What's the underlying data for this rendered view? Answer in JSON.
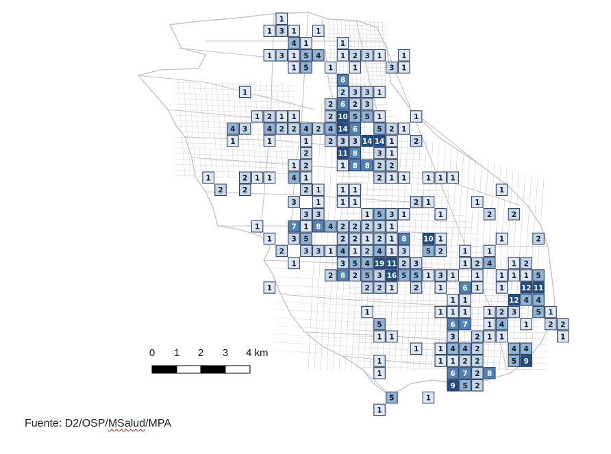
{
  "colors": {
    "street": "#c4c4c4",
    "cell_border": "#33415a",
    "cell_scale": [
      "#dce8f5",
      "#c2d7ec",
      "#8eb3d8",
      "#4f82b8",
      "#1f4e86"
    ],
    "text_dark": "#1a1a1a",
    "text_light": "#ffffff"
  },
  "scalebar": {
    "ticks": [
      "0",
      "1",
      "2",
      "3",
      "4 km"
    ]
  },
  "source": {
    "prefix": "Fuente: D2/OSP/",
    "underlined": "MSalud",
    "suffix": "/MPA"
  },
  "cells": [
    {
      "r": 0,
      "c": 0,
      "v": 1
    },
    {
      "r": 1,
      "c": -1,
      "v": 1
    },
    {
      "r": 1,
      "c": 0,
      "v": 3
    },
    {
      "r": 1,
      "c": 1,
      "v": 1
    },
    {
      "r": 1,
      "c": 3,
      "v": 1
    },
    {
      "r": 2,
      "c": 1,
      "v": 4
    },
    {
      "r": 2,
      "c": 2,
      "v": 1
    },
    {
      "r": 2,
      "c": 5,
      "v": 1
    },
    {
      "r": 3,
      "c": -1,
      "v": 1
    },
    {
      "r": 3,
      "c": 0,
      "v": 3
    },
    {
      "r": 3,
      "c": 1,
      "v": 1
    },
    {
      "r": 3,
      "c": 2,
      "v": 5
    },
    {
      "r": 3,
      "c": 3,
      "v": 4
    },
    {
      "r": 3,
      "c": 5,
      "v": 1
    },
    {
      "r": 3,
      "c": 6,
      "v": 2
    },
    {
      "r": 3,
      "c": 7,
      "v": 3
    },
    {
      "r": 3,
      "c": 8,
      "v": 1
    },
    {
      "r": 3,
      "c": 10,
      "v": 1
    },
    {
      "r": 4,
      "c": 1,
      "v": 1
    },
    {
      "r": 4,
      "c": 2,
      "v": 5
    },
    {
      "r": 4,
      "c": 4,
      "v": 1
    },
    {
      "r": 4,
      "c": 6,
      "v": 1
    },
    {
      "r": 4,
      "c": 9,
      "v": 3
    },
    {
      "r": 4,
      "c": 10,
      "v": 1
    },
    {
      "r": 5,
      "c": 5,
      "v": 8
    },
    {
      "r": 6,
      "c": -3,
      "v": 1
    },
    {
      "r": 6,
      "c": 5,
      "v": 2
    },
    {
      "r": 6,
      "c": 6,
      "v": 3
    },
    {
      "r": 6,
      "c": 7,
      "v": 3
    },
    {
      "r": 6,
      "c": 8,
      "v": 1
    },
    {
      "r": 7,
      "c": 4,
      "v": 2
    },
    {
      "r": 7,
      "c": 5,
      "v": 6
    },
    {
      "r": 7,
      "c": 6,
      "v": 2
    },
    {
      "r": 7,
      "c": 7,
      "v": 3
    },
    {
      "r": 8,
      "c": -2,
      "v": 1
    },
    {
      "r": 8,
      "c": -1,
      "v": 2
    },
    {
      "r": 8,
      "c": 0,
      "v": 1
    },
    {
      "r": 8,
      "c": 1,
      "v": 1
    },
    {
      "r": 8,
      "c": 4,
      "v": 2
    },
    {
      "r": 8,
      "c": 5,
      "v": 10
    },
    {
      "r": 8,
      "c": 6,
      "v": 5
    },
    {
      "r": 8,
      "c": 7,
      "v": 5
    },
    {
      "r": 8,
      "c": 8,
      "v": 1
    },
    {
      "r": 8,
      "c": 11,
      "v": 1
    },
    {
      "r": 9,
      "c": -4,
      "v": 4
    },
    {
      "r": 9,
      "c": -3,
      "v": 3
    },
    {
      "r": 9,
      "c": -1,
      "v": 4
    },
    {
      "r": 9,
      "c": 0,
      "v": 2
    },
    {
      "r": 9,
      "c": 1,
      "v": 2
    },
    {
      "r": 9,
      "c": 2,
      "v": 4
    },
    {
      "r": 9,
      "c": 3,
      "v": 2
    },
    {
      "r": 9,
      "c": 4,
      "v": 4
    },
    {
      "r": 9,
      "c": 5,
      "v": 14
    },
    {
      "r": 9,
      "c": 6,
      "v": 6
    },
    {
      "r": 9,
      "c": 8,
      "v": 5
    },
    {
      "r": 9,
      "c": 9,
      "v": 2
    },
    {
      "r": 9,
      "c": 10,
      "v": 1
    },
    {
      "r": 10,
      "c": -4,
      "v": 1
    },
    {
      "r": 10,
      "c": -1,
      "v": 1
    },
    {
      "r": 10,
      "c": 2,
      "v": 1
    },
    {
      "r": 10,
      "c": 4,
      "v": 2
    },
    {
      "r": 10,
      "c": 5,
      "v": 3
    },
    {
      "r": 10,
      "c": 6,
      "v": 3
    },
    {
      "r": 10,
      "c": 7,
      "v": 14
    },
    {
      "r": 10,
      "c": 8,
      "v": 14
    },
    {
      "r": 10,
      "c": 9,
      "v": 1
    },
    {
      "r": 10,
      "c": 11,
      "v": 2
    },
    {
      "r": 11,
      "c": 2,
      "v": 2
    },
    {
      "r": 11,
      "c": 5,
      "v": 11
    },
    {
      "r": 11,
      "c": 6,
      "v": 8
    },
    {
      "r": 11,
      "c": 8,
      "v": 3
    },
    {
      "r": 11,
      "c": 9,
      "v": 1
    },
    {
      "r": 12,
      "c": 1,
      "v": 1
    },
    {
      "r": 12,
      "c": 2,
      "v": 2
    },
    {
      "r": 12,
      "c": 5,
      "v": 1
    },
    {
      "r": 12,
      "c": 6,
      "v": 8
    },
    {
      "r": 12,
      "c": 7,
      "v": 8
    },
    {
      "r": 12,
      "c": 8,
      "v": 2
    },
    {
      "r": 12,
      "c": 9,
      "v": 2
    },
    {
      "r": 13,
      "c": -6,
      "v": 1
    },
    {
      "r": 13,
      "c": -3,
      "v": 2
    },
    {
      "r": 13,
      "c": -2,
      "v": 1
    },
    {
      "r": 13,
      "c": -1,
      "v": 1
    },
    {
      "r": 13,
      "c": 1,
      "v": 4
    },
    {
      "r": 13,
      "c": 2,
      "v": 1
    },
    {
      "r": 13,
      "c": 8,
      "v": 2
    },
    {
      "r": 13,
      "c": 9,
      "v": 1
    },
    {
      "r": 13,
      "c": 10,
      "v": 1
    },
    {
      "r": 13,
      "c": 12,
      "v": 1
    },
    {
      "r": 13,
      "c": 13,
      "v": 1
    },
    {
      "r": 13,
      "c": 14,
      "v": 1
    },
    {
      "r": 14,
      "c": -5,
      "v": 2
    },
    {
      "r": 14,
      "c": -3,
      "v": 2
    },
    {
      "r": 14,
      "c": 2,
      "v": 2
    },
    {
      "r": 14,
      "c": 3,
      "v": 1
    },
    {
      "r": 14,
      "c": 5,
      "v": 1
    },
    {
      "r": 14,
      "c": 6,
      "v": 1
    },
    {
      "r": 14,
      "c": 18,
      "v": 1
    },
    {
      "r": 15,
      "c": 1,
      "v": 3
    },
    {
      "r": 15,
      "c": 3,
      "v": 1
    },
    {
      "r": 15,
      "c": 5,
      "v": 1
    },
    {
      "r": 15,
      "c": 6,
      "v": 1
    },
    {
      "r": 15,
      "c": 11,
      "v": 2
    },
    {
      "r": 15,
      "c": 12,
      "v": 1
    },
    {
      "r": 15,
      "c": 16,
      "v": 1
    },
    {
      "r": 16,
      "c": 2,
      "v": 3
    },
    {
      "r": 16,
      "c": 3,
      "v": 3
    },
    {
      "r": 16,
      "c": 7,
      "v": 1
    },
    {
      "r": 16,
      "c": 8,
      "v": 5
    },
    {
      "r": 16,
      "c": 9,
      "v": 3
    },
    {
      "r": 16,
      "c": 10,
      "v": 1
    },
    {
      "r": 16,
      "c": 13,
      "v": 1
    },
    {
      "r": 16,
      "c": 17,
      "v": 2
    },
    {
      "r": 16,
      "c": 19,
      "v": 2
    },
    {
      "r": 17,
      "c": -2,
      "v": 1
    },
    {
      "r": 17,
      "c": 1,
      "v": 7
    },
    {
      "r": 17,
      "c": 2,
      "v": 1
    },
    {
      "r": 17,
      "c": 3,
      "v": 8
    },
    {
      "r": 17,
      "c": 4,
      "v": 4
    },
    {
      "r": 17,
      "c": 5,
      "v": 2
    },
    {
      "r": 17,
      "c": 6,
      "v": 2
    },
    {
      "r": 17,
      "c": 7,
      "v": 2
    },
    {
      "r": 17,
      "c": 8,
      "v": 3
    },
    {
      "r": 17,
      "c": 9,
      "v": 1
    },
    {
      "r": 18,
      "c": -1,
      "v": 1
    },
    {
      "r": 18,
      "c": 1,
      "v": 3
    },
    {
      "r": 18,
      "c": 2,
      "v": 5
    },
    {
      "r": 18,
      "c": 5,
      "v": 2
    },
    {
      "r": 18,
      "c": 6,
      "v": 2
    },
    {
      "r": 18,
      "c": 7,
      "v": 1
    },
    {
      "r": 18,
      "c": 8,
      "v": 2
    },
    {
      "r": 18,
      "c": 9,
      "v": 1
    },
    {
      "r": 18,
      "c": 10,
      "v": 8
    },
    {
      "r": 18,
      "c": 12,
      "v": 10
    },
    {
      "r": 18,
      "c": 13,
      "v": 1
    },
    {
      "r": 18,
      "c": 18,
      "v": 1
    },
    {
      "r": 18,
      "c": 21,
      "v": 2
    },
    {
      "r": 19,
      "c": 0,
      "v": 2
    },
    {
      "r": 19,
      "c": 2,
      "v": 3
    },
    {
      "r": 19,
      "c": 3,
      "v": 3
    },
    {
      "r": 19,
      "c": 4,
      "v": 1
    },
    {
      "r": 19,
      "c": 5,
      "v": 4
    },
    {
      "r": 19,
      "c": 6,
      "v": 1
    },
    {
      "r": 19,
      "c": 7,
      "v": 2
    },
    {
      "r": 19,
      "c": 8,
      "v": 4
    },
    {
      "r": 19,
      "c": 9,
      "v": 1
    },
    {
      "r": 19,
      "c": 10,
      "v": 3
    },
    {
      "r": 19,
      "c": 12,
      "v": 5
    },
    {
      "r": 19,
      "c": 13,
      "v": 2
    },
    {
      "r": 19,
      "c": 15,
      "v": 1
    },
    {
      "r": 19,
      "c": 17,
      "v": 1
    },
    {
      "r": 20,
      "c": 1,
      "v": 1
    },
    {
      "r": 20,
      "c": 5,
      "v": 3
    },
    {
      "r": 20,
      "c": 6,
      "v": 5
    },
    {
      "r": 20,
      "c": 7,
      "v": 4
    },
    {
      "r": 20,
      "c": 8,
      "v": 19
    },
    {
      "r": 20,
      "c": 9,
      "v": 11
    },
    {
      "r": 20,
      "c": 10,
      "v": 2
    },
    {
      "r": 20,
      "c": 11,
      "v": 3
    },
    {
      "r": 20,
      "c": 15,
      "v": 1
    },
    {
      "r": 20,
      "c": 16,
      "v": 2
    },
    {
      "r": 20,
      "c": 17,
      "v": 4
    },
    {
      "r": 20,
      "c": 19,
      "v": 1
    },
    {
      "r": 20,
      "c": 20,
      "v": 2
    },
    {
      "r": 21,
      "c": 4,
      "v": 2
    },
    {
      "r": 21,
      "c": 5,
      "v": 8
    },
    {
      "r": 21,
      "c": 6,
      "v": 2
    },
    {
      "r": 21,
      "c": 7,
      "v": 5
    },
    {
      "r": 21,
      "c": 8,
      "v": 3
    },
    {
      "r": 21,
      "c": 9,
      "v": 16
    },
    {
      "r": 21,
      "c": 10,
      "v": 5
    },
    {
      "r": 21,
      "c": 11,
      "v": 5
    },
    {
      "r": 21,
      "c": 12,
      "v": 1
    },
    {
      "r": 21,
      "c": 13,
      "v": 3
    },
    {
      "r": 21,
      "c": 14,
      "v": 1
    },
    {
      "r": 21,
      "c": 16,
      "v": 1
    },
    {
      "r": 21,
      "c": 18,
      "v": 1
    },
    {
      "r": 21,
      "c": 19,
      "v": 1
    },
    {
      "r": 21,
      "c": 20,
      "v": 1
    },
    {
      "r": 21,
      "c": 21,
      "v": 5
    },
    {
      "r": 22,
      "c": -1,
      "v": 1
    },
    {
      "r": 22,
      "c": 7,
      "v": 2
    },
    {
      "r": 22,
      "c": 8,
      "v": 2
    },
    {
      "r": 22,
      "c": 9,
      "v": 1
    },
    {
      "r": 22,
      "c": 11,
      "v": 2
    },
    {
      "r": 22,
      "c": 13,
      "v": 1
    },
    {
      "r": 22,
      "c": 15,
      "v": 6
    },
    {
      "r": 22,
      "c": 16,
      "v": 1
    },
    {
      "r": 22,
      "c": 18,
      "v": 1
    },
    {
      "r": 22,
      "c": 20,
      "v": 12
    },
    {
      "r": 22,
      "c": 21,
      "v": 11
    },
    {
      "r": 23,
      "c": 14,
      "v": 1
    },
    {
      "r": 23,
      "c": 15,
      "v": 1
    },
    {
      "r": 23,
      "c": 19,
      "v": 12
    },
    {
      "r": 23,
      "c": 20,
      "v": 4
    },
    {
      "r": 23,
      "c": 21,
      "v": 4
    },
    {
      "r": 24,
      "c": 7,
      "v": 1
    },
    {
      "r": 24,
      "c": 13,
      "v": 1
    },
    {
      "r": 24,
      "c": 14,
      "v": 1
    },
    {
      "r": 24,
      "c": 15,
      "v": 1
    },
    {
      "r": 24,
      "c": 17,
      "v": 1
    },
    {
      "r": 24,
      "c": 18,
      "v": 2
    },
    {
      "r": 24,
      "c": 19,
      "v": 3
    },
    {
      "r": 24,
      "c": 21,
      "v": 5
    },
    {
      "r": 24,
      "c": 22,
      "v": 1
    },
    {
      "r": 25,
      "c": 8,
      "v": 5
    },
    {
      "r": 25,
      "c": 14,
      "v": 6
    },
    {
      "r": 25,
      "c": 15,
      "v": 7
    },
    {
      "r": 25,
      "c": 17,
      "v": 1
    },
    {
      "r": 25,
      "c": 18,
      "v": 4
    },
    {
      "r": 25,
      "c": 20,
      "v": 1
    },
    {
      "r": 25,
      "c": 22,
      "v": 2
    },
    {
      "r": 25,
      "c": 23,
      "v": 2
    },
    {
      "r": 26,
      "c": 8,
      "v": 1
    },
    {
      "r": 26,
      "c": 9,
      "v": 1
    },
    {
      "r": 26,
      "c": 14,
      "v": 3
    },
    {
      "r": 26,
      "c": 16,
      "v": 2
    },
    {
      "r": 26,
      "c": 17,
      "v": 1
    },
    {
      "r": 26,
      "c": 18,
      "v": 1
    },
    {
      "r": 26,
      "c": 23,
      "v": 1
    },
    {
      "r": 27,
      "c": 11,
      "v": 1
    },
    {
      "r": 27,
      "c": 13,
      "v": 1
    },
    {
      "r": 27,
      "c": 14,
      "v": 4
    },
    {
      "r": 27,
      "c": 15,
      "v": 4
    },
    {
      "r": 27,
      "c": 16,
      "v": 2
    },
    {
      "r": 27,
      "c": 19,
      "v": 4
    },
    {
      "r": 27,
      "c": 20,
      "v": 4
    },
    {
      "r": 28,
      "c": 8,
      "v": 1
    },
    {
      "r": 28,
      "c": 13,
      "v": 1
    },
    {
      "r": 28,
      "c": 14,
      "v": 1
    },
    {
      "r": 28,
      "c": 15,
      "v": 2
    },
    {
      "r": 28,
      "c": 16,
      "v": 2
    },
    {
      "r": 28,
      "c": 19,
      "v": 5
    },
    {
      "r": 28,
      "c": 20,
      "v": 9
    },
    {
      "r": 29,
      "c": 8,
      "v": 1
    },
    {
      "r": 29,
      "c": 14,
      "v": 6
    },
    {
      "r": 29,
      "c": 15,
      "v": 7
    },
    {
      "r": 29,
      "c": 16,
      "v": 2
    },
    {
      "r": 29,
      "c": 17,
      "v": 8
    },
    {
      "r": 30,
      "c": 14,
      "v": 9
    },
    {
      "r": 30,
      "c": 15,
      "v": 5
    },
    {
      "r": 30,
      "c": 16,
      "v": 2
    },
    {
      "r": 31,
      "c": 9,
      "v": 5
    },
    {
      "r": 31,
      "c": 12,
      "v": 1
    },
    {
      "r": 32,
      "c": 8,
      "v": 1
    }
  ]
}
